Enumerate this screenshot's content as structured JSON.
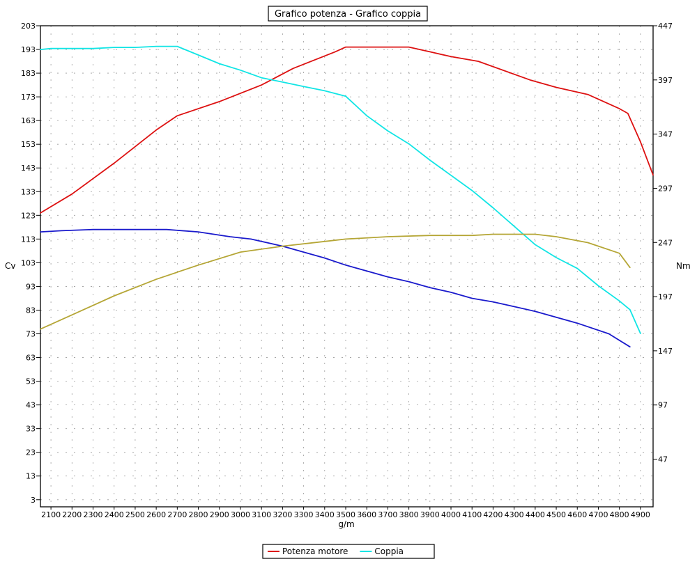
{
  "chart_data": {
    "type": "line",
    "title": "Grafico potenza - Grafico coppia",
    "xlabel": "g/m",
    "ylabel_left": "Cv",
    "ylabel_right": "Nm",
    "x_ticks": [
      2100,
      2200,
      2300,
      2400,
      2500,
      2600,
      2700,
      2800,
      2900,
      3000,
      3100,
      3200,
      3300,
      3400,
      3500,
      3600,
      3700,
      3800,
      3900,
      4000,
      4100,
      4200,
      4300,
      4400,
      4500,
      4600,
      4700,
      4800,
      4900
    ],
    "xlim": [
      2050,
      4960
    ],
    "y_left_ticks": [
      3,
      13,
      23,
      33,
      43,
      53,
      63,
      73,
      83,
      93,
      103,
      113,
      123,
      133,
      143,
      153,
      163,
      173,
      183,
      193,
      203
    ],
    "ylim_left": [
      0,
      203
    ],
    "y_right_ticks": [
      47,
      97,
      147,
      197,
      247,
      297,
      347,
      397,
      447
    ],
    "ylim_right": [
      3,
      447
    ],
    "grid": true,
    "legend_position": "bottom-center",
    "series": [
      {
        "name": "Potenza motore",
        "color": "#dd1111",
        "axis": "left",
        "x": [
          2050,
          2200,
          2400,
          2600,
          2700,
          2900,
          3100,
          3250,
          3450,
          3500,
          3800,
          3900,
          4000,
          4130,
          4380,
          4500,
          4650,
          4800,
          4840,
          4900,
          4960
        ],
        "y": [
          124,
          132,
          145,
          159,
          165,
          171,
          178,
          185,
          192,
          194,
          194,
          192,
          190,
          188,
          180,
          177,
          174,
          168,
          166,
          154,
          140
        ]
      },
      {
        "name": "Coppia",
        "color": "#11e5e5",
        "axis": "right",
        "x": [
          2050,
          2100,
          2300,
          2400,
          2500,
          2600,
          2700,
          2800,
          2900,
          3000,
          3100,
          3200,
          3300,
          3400,
          3500,
          3600,
          3700,
          3800,
          3900,
          4000,
          4100,
          4200,
          4300,
          4400,
          4500,
          4600,
          4700,
          4800,
          4850,
          4900
        ],
        "y": [
          425,
          426,
          426,
          427,
          427,
          428,
          428,
          420,
          412,
          406,
          399,
          395,
          391,
          387,
          382,
          364,
          350,
          338,
          323,
          309,
          295,
          279,
          262,
          245,
          233,
          223,
          207,
          193,
          185,
          163
        ]
      },
      {
        "name": "",
        "color": "#1a1acc",
        "axis": "left",
        "x": [
          2050,
          2150,
          2300,
          2650,
          2800,
          2950,
          3050,
          3200,
          3300,
          3400,
          3500,
          3600,
          3700,
          3800,
          3900,
          4000,
          4100,
          4200,
          4300,
          4400,
          4500,
          4600,
          4750,
          4850
        ],
        "y": [
          116,
          116.5,
          117,
          117,
          116,
          114,
          113,
          110,
          107.5,
          105,
          102,
          99.5,
          97,
          95,
          92.5,
          90.5,
          88,
          86.5,
          84.5,
          82.5,
          80,
          77.5,
          73,
          67.5
        ]
      },
      {
        "name": "",
        "color": "#b5a636",
        "axis": "left",
        "x": [
          2050,
          2200,
          2400,
          2600,
          2800,
          3000,
          3200,
          3400,
          3500,
          3700,
          3900,
          4100,
          4200,
          4400,
          4500,
          4650,
          4800,
          4850
        ],
        "y": [
          75,
          81,
          89,
          96,
          102,
          107.5,
          110,
          112,
          113,
          114,
          114.5,
          114.5,
          115,
          115,
          114,
          111.5,
          107,
          101
        ]
      }
    ]
  }
}
